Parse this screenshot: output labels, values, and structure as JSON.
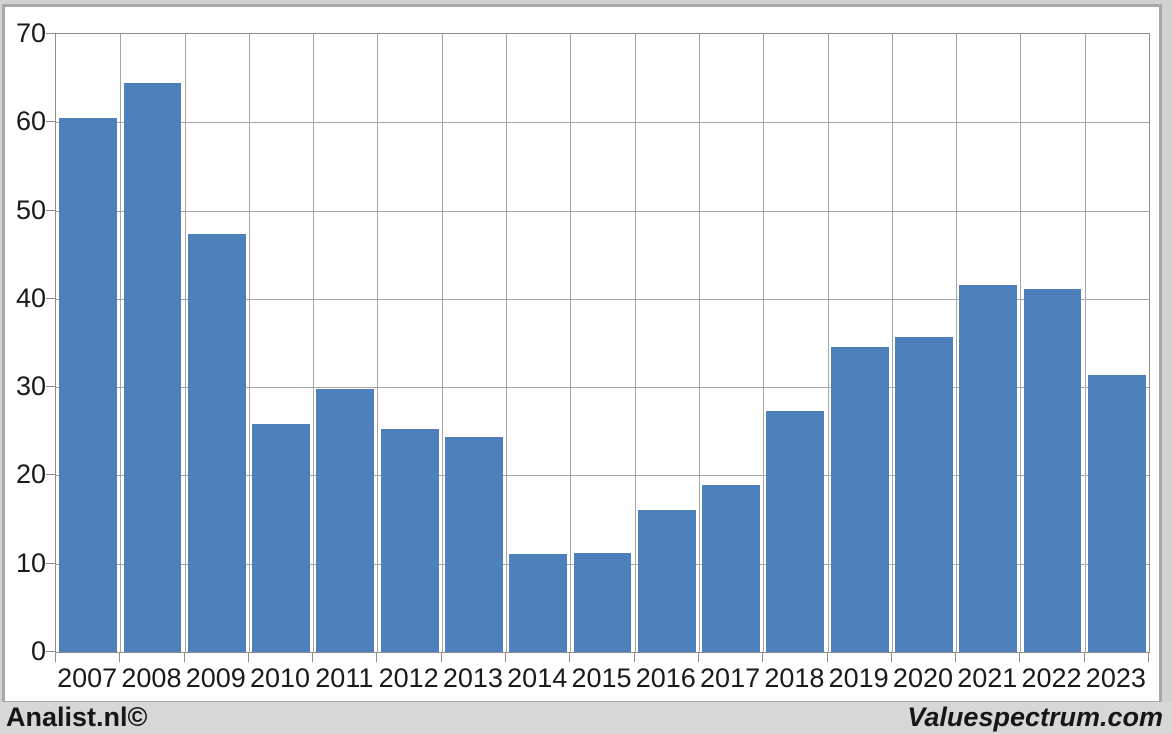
{
  "chart_data": {
    "type": "bar",
    "title": "",
    "xlabel": "",
    "ylabel": "",
    "categories": [
      "2007",
      "2008",
      "2009",
      "2010",
      "2011",
      "2012",
      "2013",
      "2014",
      "2015",
      "2016",
      "2017",
      "2018",
      "2019",
      "2020",
      "2021",
      "2022",
      "2023"
    ],
    "values": [
      60.5,
      64.5,
      47.3,
      25.8,
      29.8,
      25.3,
      24.3,
      11.1,
      11.2,
      16.1,
      18.9,
      27.3,
      34.5,
      35.7,
      41.6,
      41.1,
      31.4
    ],
    "ylim": [
      0,
      70
    ],
    "yticks": [
      0,
      10,
      20,
      30,
      40,
      50,
      60,
      70
    ],
    "grid": true,
    "legend": "none",
    "bar_color": "#4e80bc",
    "gridline_color": "#a6a6a6",
    "axis_line_color": "#8e8e8e",
    "axis_text_color": "#1a1a1a",
    "plot_background": "#ffffff",
    "bar_width_ratio": 0.9
  },
  "footer": {
    "left_label": "Analist.nl©",
    "right_label": "Valuespectrum.com"
  }
}
